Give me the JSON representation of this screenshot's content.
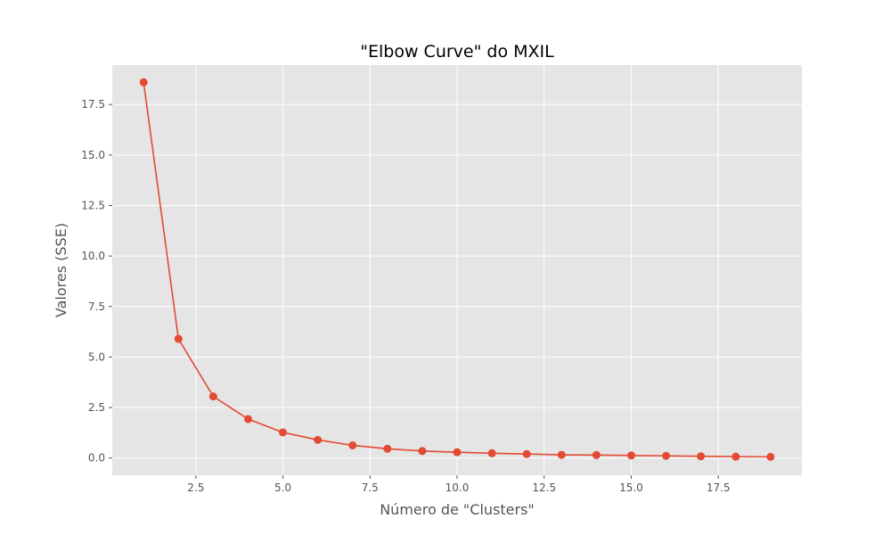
{
  "chart_data": {
    "type": "line",
    "title": "\"Elbow Curve\" do MXIL",
    "xlabel": "Número de \"Clusters\"",
    "ylabel": "Valores (SSE)",
    "xlim": [
      0.1,
      19.9
    ],
    "ylim": [
      -0.85,
      19.45
    ],
    "xticks": [
      2.5,
      5.0,
      7.5,
      10.0,
      12.5,
      15.0,
      17.5
    ],
    "xtick_labels": [
      "2.5",
      "5.0",
      "7.5",
      "10.0",
      "12.5",
      "15.0",
      "17.5"
    ],
    "yticks": [
      0.0,
      2.5,
      5.0,
      7.5,
      10.0,
      12.5,
      15.0,
      17.5
    ],
    "ytick_labels": [
      "0.0",
      "2.5",
      "5.0",
      "7.5",
      "10.0",
      "12.5",
      "15.0",
      "17.5"
    ],
    "grid": true,
    "style": "ggplot",
    "background_color": "#e5e5e5",
    "grid_color": "#ffffff",
    "series": [
      {
        "color": "#e24a33",
        "marker": "circle",
        "x": [
          1,
          2,
          3,
          4,
          5,
          6,
          7,
          8,
          9,
          10,
          11,
          12,
          13,
          14,
          15,
          16,
          17,
          18,
          19
        ],
        "y": [
          18.6,
          5.9,
          3.05,
          1.93,
          1.27,
          0.9,
          0.63,
          0.46,
          0.35,
          0.29,
          0.24,
          0.2,
          0.16,
          0.15,
          0.13,
          0.11,
          0.09,
          0.07,
          0.06
        ]
      }
    ]
  }
}
